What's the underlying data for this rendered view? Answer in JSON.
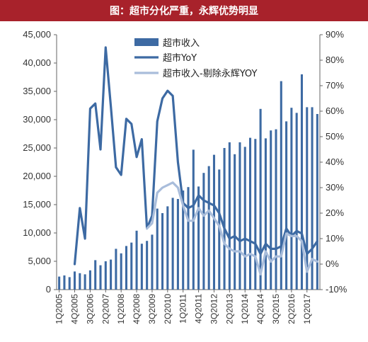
{
  "header": {
    "title": "图：超市分化严重，永辉优势明显"
  },
  "colors": {
    "title_bg": "#a8222b",
    "bar": "#3d6aa3",
    "yoy": "#3d6aa3",
    "ex_yonghui": "#a9bddb",
    "axis": "#666666"
  },
  "chart_data": {
    "type": "bar",
    "categories": [
      "1Q2005",
      "2Q2005",
      "3Q2005",
      "4Q2005",
      "1Q2006",
      "2Q2006",
      "3Q2006",
      "4Q2006",
      "1Q2007",
      "2Q2007",
      "3Q2007",
      "4Q2007",
      "1Q2008",
      "2Q2008",
      "3Q2008",
      "4Q2008",
      "1Q2009",
      "2Q2009",
      "3Q2009",
      "4Q2009",
      "1Q2010",
      "2Q2010",
      "3Q2010",
      "4Q2010",
      "1Q2011",
      "2Q2011",
      "3Q2011",
      "4Q2011",
      "1Q2012",
      "2Q2012",
      "3Q2012",
      "4Q2012",
      "1Q2013",
      "2Q2013",
      "3Q2013",
      "4Q2013",
      "1Q2014",
      "2Q2014",
      "3Q2014",
      "4Q2014",
      "1Q2015",
      "2Q2015",
      "3Q2015",
      "4Q2015",
      "1Q2016",
      "2Q2016",
      "3Q2016",
      "4Q2016",
      "1Q2017",
      "2Q2017",
      "3Q2017"
    ],
    "xtick_labels": [
      "1Q2005",
      "4Q2005",
      "3Q2006",
      "2Q2007",
      "1Q2008",
      "4Q2008",
      "3Q2009",
      "2Q2010",
      "1Q2011",
      "4Q2011",
      "3Q2012",
      "2Q2013",
      "1Q2014",
      "4Q2014",
      "3Q2015",
      "2Q2016",
      "1Q2017"
    ],
    "series": [
      {
        "name": "超市收入",
        "type": "bar",
        "axis": "left",
        "values": [
          2300,
          2500,
          2200,
          3200,
          2900,
          2700,
          3400,
          5200,
          4300,
          5000,
          5300,
          7200,
          6400,
          7700,
          8300,
          10400,
          8100,
          8600,
          9700,
          14300,
          13500,
          14700,
          16200,
          16000,
          17500,
          18100,
          24700,
          18200,
          20600,
          21800,
          23800,
          21200,
          25000,
          26000,
          23900,
          26000,
          25200,
          26800,
          26600,
          31900,
          26700,
          28100,
          28300,
          36800,
          29700,
          32100,
          31200,
          38000,
          32200,
          32200,
          31000
        ]
      },
      {
        "name": "超市YoY",
        "type": "line",
        "axis": "right",
        "values": [
          null,
          null,
          null,
          0,
          22,
          10,
          61,
          63,
          45,
          85,
          62,
          38,
          35,
          57,
          55,
          42,
          49,
          14,
          19,
          56,
          65,
          68,
          66,
          40,
          24,
          22,
          23,
          27,
          25,
          24,
          23,
          20,
          14,
          10,
          11,
          9,
          10,
          9,
          8,
          4,
          8,
          6,
          6,
          7,
          14,
          11,
          13,
          12,
          4,
          6,
          9
        ]
      },
      {
        "name": "超市收入-剔除永辉YOY",
        "type": "line",
        "axis": "right",
        "values": [
          null,
          null,
          null,
          null,
          null,
          null,
          null,
          null,
          null,
          null,
          null,
          null,
          null,
          null,
          null,
          null,
          null,
          14,
          16,
          28,
          30,
          31,
          32,
          30,
          23,
          17,
          17,
          22,
          19,
          21,
          18,
          15,
          8,
          6,
          5,
          5,
          3,
          4,
          3,
          -4,
          5,
          1,
          3,
          3,
          12,
          11,
          11,
          9,
          -3,
          2,
          1
        ]
      }
    ],
    "ylim_left": [
      0,
      45000
    ],
    "yticks_left": [
      "0",
      "5,000",
      "10,000",
      "15,000",
      "20,000",
      "25,000",
      "30,000",
      "35,000",
      "40,000",
      "45,000"
    ],
    "ylim_right": [
      -10,
      90
    ],
    "yticks_right": [
      "-10%",
      "0%",
      "10%",
      "20%",
      "30%",
      "40%",
      "50%",
      "60%",
      "70%",
      "80%",
      "90%"
    ],
    "legend_position": "top-center",
    "grid": false
  }
}
